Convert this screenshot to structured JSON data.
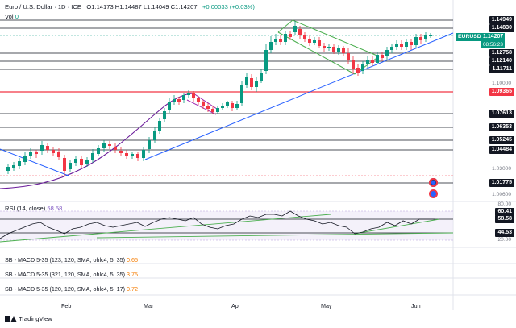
{
  "header": {
    "symbol_line": "Euro / U.S. Dollar · 1D · ICE",
    "ohlc": "O1.14173  H1.14487  L1.14049  C1.14207",
    "change": "+0.00033 (+0.03%)"
  },
  "volume": {
    "label": "Vol",
    "value": "0"
  },
  "ticker": {
    "symbol": "EURUSD",
    "price": "1.14207",
    "countdown": "08:56:23"
  },
  "price_axis": {
    "levels": [
      {
        "label": "1.14949",
        "style": "black"
      },
      {
        "label": "1.14830",
        "style": "black"
      },
      {
        "label": "1.12758",
        "style": "black"
      },
      {
        "label": "1.12140",
        "style": "black"
      },
      {
        "label": "1.11711",
        "style": "black"
      },
      {
        "label": "1.10000",
        "style": "plain"
      },
      {
        "label": "1.09365",
        "style": "red"
      },
      {
        "label": "1.07613",
        "style": "black"
      },
      {
        "label": "1.06353",
        "style": "black"
      },
      {
        "label": "1.05245",
        "style": "black"
      },
      {
        "label": "1.04484",
        "style": "black"
      },
      {
        "label": "1.03000",
        "style": "plain"
      },
      {
        "label": "1.01775",
        "style": "black"
      },
      {
        "label": "1.00600",
        "style": "plain"
      }
    ]
  },
  "rsi": {
    "label": "RSI (14, close)",
    "value": "58.58",
    "axis": [
      {
        "label": "80.00",
        "style": "plain"
      },
      {
        "label": "60.41",
        "style": "black"
      },
      {
        "label": "58.58",
        "style": "black"
      },
      {
        "label": "44.53",
        "style": "black"
      },
      {
        "label": "20.00",
        "style": "plain"
      }
    ]
  },
  "macd_panels": [
    {
      "label": "SB - MACD 5-35 (123, 120, SMA, ohlc4, 5, 35)",
      "value": "0.65"
    },
    {
      "label": "SB - MACD 5-35 (321, 120, SMA, ohlc4, 5, 35)",
      "value": "3.75"
    },
    {
      "label": "SB - MACD 5-35 (120, 120, SMA, ohlc4, 5, 17)",
      "value": "0.72"
    }
  ],
  "time_axis": [
    "Feb",
    "Mar",
    "Apr",
    "May",
    "Jun"
  ],
  "branding": {
    "name": "TradingView"
  },
  "colors": {
    "up": "#089981",
    "down": "#f23645",
    "trend_blue": "#2962ff",
    "channel_green": "#4caf50",
    "rsi_purple": "#7e57c2",
    "moving_average": "#6a1b9a"
  },
  "icons": [
    "tradingview-logo-icon",
    "alert-bubble-icon",
    "alert-clock-icon"
  ]
}
